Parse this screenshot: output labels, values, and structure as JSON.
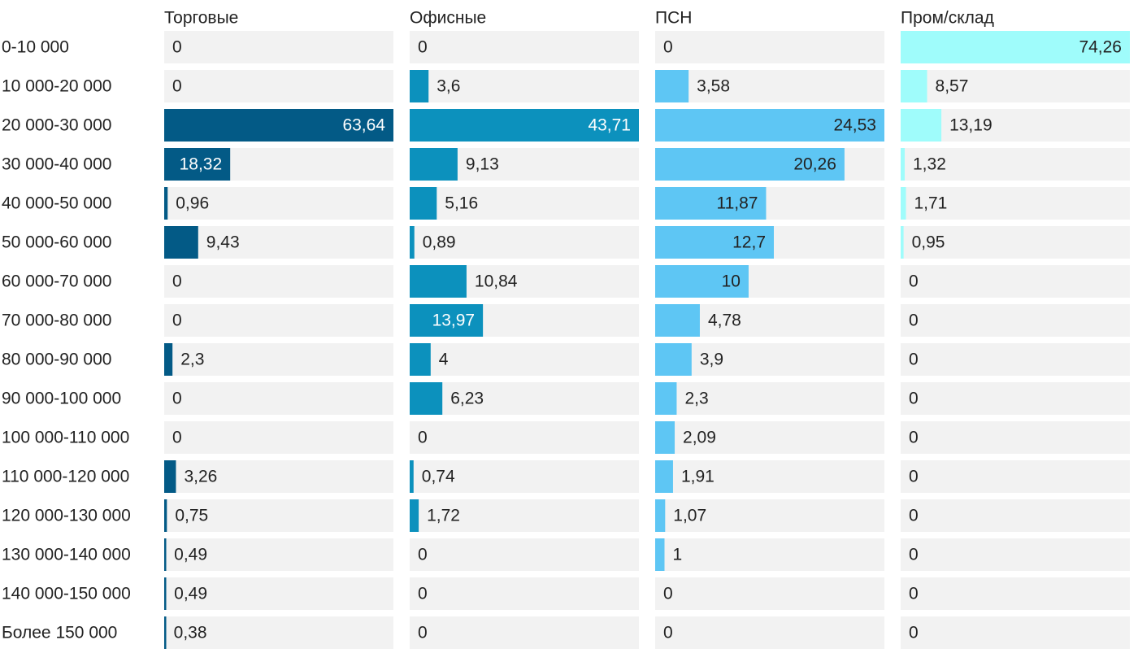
{
  "chart_data": {
    "type": "bar",
    "orientation": "horizontal",
    "layout": "small-multiples",
    "categories": [
      "0-10 000",
      "10 000-20 000",
      "20 000-30 000",
      "30 000-40 000",
      "40 000-50 000",
      "50 000-60 000",
      "60 000-70 000",
      "70 000-80 000",
      "80 000-90 000",
      "90 000-100 000",
      "100 000-110 000",
      "110 000-120 000",
      "120 000-130 000",
      "130 000-140 000",
      "140 000-150 000",
      "Более 150 000"
    ],
    "series": [
      {
        "name": "Торговые",
        "color": "#035a86",
        "values": [
          0,
          0,
          63.64,
          18.32,
          0.96,
          9.43,
          0,
          0,
          2.3,
          0,
          0,
          3.26,
          0.75,
          0.49,
          0.49,
          0.38
        ],
        "labels": [
          "0",
          "0",
          "63,64",
          "18,32",
          "0,96",
          "9,43",
          "0",
          "0",
          "2,3",
          "0",
          "0",
          "3,26",
          "0,75",
          "0,49",
          "0,49",
          "0,38"
        ]
      },
      {
        "name": "Офисные",
        "color": "#0c91bd",
        "values": [
          0,
          3.6,
          43.71,
          9.13,
          5.16,
          0.89,
          10.84,
          13.97,
          4,
          6.23,
          0,
          0.74,
          1.72,
          0,
          0,
          0
        ],
        "labels": [
          "0",
          "3,6",
          "43,71",
          "9,13",
          "5,16",
          "0,89",
          "10,84",
          "13,97",
          "4",
          "6,23",
          "0",
          "0,74",
          "1,72",
          "0",
          "0",
          "0"
        ]
      },
      {
        "name": "ПСН",
        "color": "#5ec6f4",
        "values": [
          0,
          3.58,
          24.53,
          20.26,
          11.87,
          12.7,
          10,
          4.78,
          3.9,
          2.3,
          2.09,
          1.91,
          1.07,
          1,
          0,
          0
        ],
        "labels": [
          "0",
          "3,58",
          "24,53",
          "20,26",
          "11,87",
          "12,7",
          "10",
          "4,78",
          "3,9",
          "2,3",
          "2,09",
          "1,91",
          "1,07",
          "1",
          "0",
          "0"
        ]
      },
      {
        "name": "Пром/склад",
        "color": "#9ffcfb",
        "values": [
          74.26,
          8.57,
          13.19,
          1.32,
          1.71,
          0.95,
          0,
          0,
          0,
          0,
          0,
          0,
          0,
          0,
          0,
          0
        ],
        "labels": [
          "74,26",
          "8,57",
          "13,19",
          "1,32",
          "1,71",
          "0,95",
          "0",
          "0",
          "0",
          "0",
          "0",
          "0",
          "0",
          "0",
          "0",
          "0"
        ]
      }
    ],
    "title": "",
    "xlabel": "",
    "ylabel": "",
    "grid": false,
    "legend": "none",
    "background_color": "#f2f2f2"
  }
}
